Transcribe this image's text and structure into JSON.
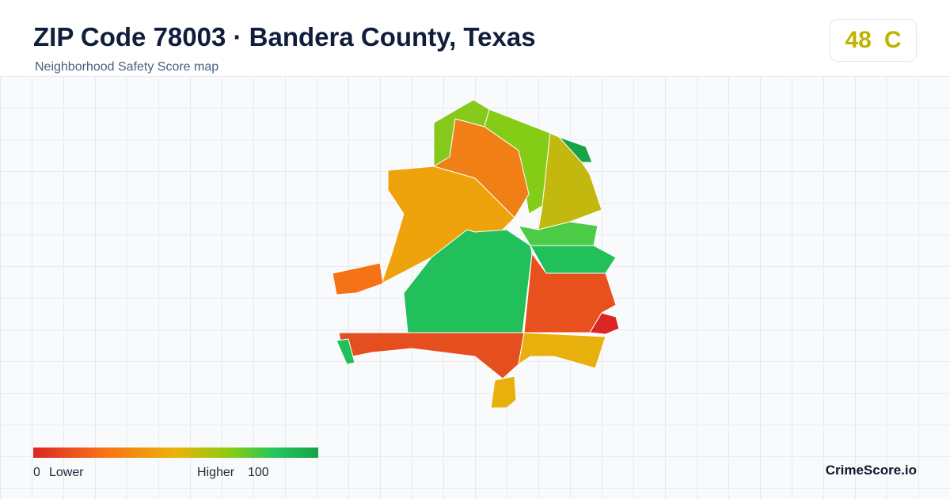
{
  "header": {
    "title": "ZIP Code 78003 · Bandera County, Texas",
    "subtitle": "Neighborhood Safety Score map"
  },
  "score": {
    "value": "48",
    "grade": "C"
  },
  "legend": {
    "min": "0",
    "min_label": "Lower",
    "max_label": "Higher",
    "max": "100"
  },
  "footer": {
    "brand": "CrimeScore.io"
  }
}
